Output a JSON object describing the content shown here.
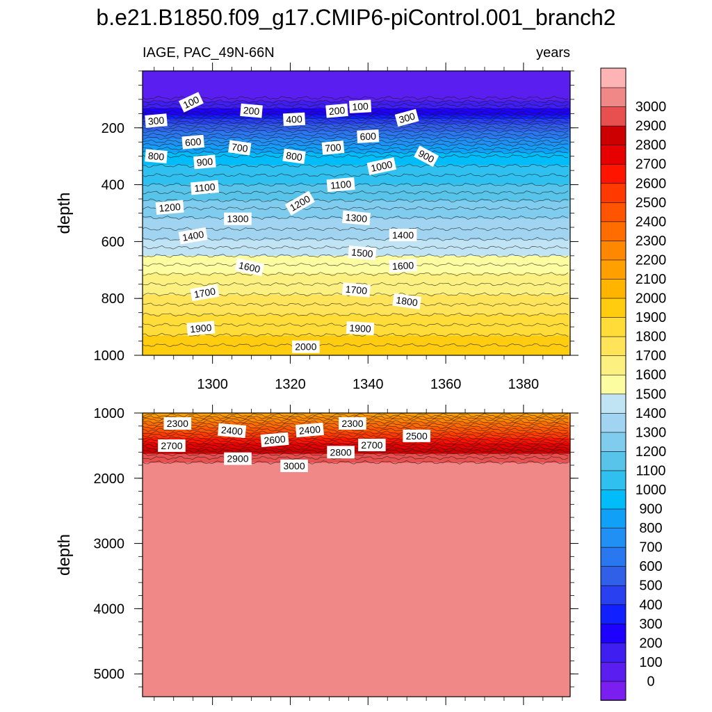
{
  "chart_data": {
    "type": "heatmap",
    "title": "b.e21.B1850.f09_g17.CMIP6-piControl.001_branch2",
    "left_string": "IAGE, PAC_49N-66N",
    "right_string": "years",
    "x": {
      "range": [
        1282,
        1392
      ],
      "ticks": [
        1300,
        1320,
        1340,
        1360,
        1380
      ],
      "tick_labels": [
        "1300",
        "1320",
        "1340",
        "1360",
        "1380"
      ]
    },
    "panels": [
      {
        "name": "upper",
        "ylabel": "depth",
        "y_range": [
          0,
          1000
        ],
        "y_ticks": [
          200,
          400,
          600,
          800,
          1000
        ],
        "y_tick_labels": [
          "200",
          "400",
          "600",
          "800",
          "1000"
        ],
        "age_profile": [
          [
            0,
            0
          ],
          [
            50,
            0
          ],
          [
            90,
            30
          ],
          [
            120,
            150
          ],
          [
            145,
            250
          ],
          [
            170,
            400
          ],
          [
            200,
            550
          ],
          [
            260,
            800
          ],
          [
            300,
            950
          ],
          [
            400,
            1100
          ],
          [
            500,
            1280
          ],
          [
            580,
            1380
          ],
          [
            650,
            1500
          ],
          [
            700,
            1580
          ],
          [
            800,
            1720
          ],
          [
            900,
            1860
          ],
          [
            1000,
            2000
          ]
        ],
        "contour_labels": [
          {
            "text": "300",
            "x": 1285.5,
            "y": 175,
            "rot": -5
          },
          {
            "text": "100",
            "x": 1294.5,
            "y": 110,
            "rot": -25
          },
          {
            "text": "600",
            "x": 1295,
            "y": 250,
            "rot": -5
          },
          {
            "text": "200",
            "x": 1310,
            "y": 140,
            "rot": 5
          },
          {
            "text": "400",
            "x": 1321,
            "y": 170,
            "rot": -3
          },
          {
            "text": "200",
            "x": 1332,
            "y": 140,
            "rot": -5
          },
          {
            "text": "100",
            "x": 1338,
            "y": 125,
            "rot": -3
          },
          {
            "text": "300",
            "x": 1350,
            "y": 165,
            "rot": -15
          },
          {
            "text": "700",
            "x": 1307,
            "y": 270,
            "rot": 8
          },
          {
            "text": "800",
            "x": 1285.5,
            "y": 300,
            "rot": 5
          },
          {
            "text": "900",
            "x": 1298,
            "y": 320,
            "rot": -5
          },
          {
            "text": "800",
            "x": 1321,
            "y": 300,
            "rot": 8
          },
          {
            "text": "700",
            "x": 1331,
            "y": 270,
            "rot": -5
          },
          {
            "text": "600",
            "x": 1340,
            "y": 230,
            "rot": -3
          },
          {
            "text": "900",
            "x": 1355,
            "y": 300,
            "rot": 28
          },
          {
            "text": "1000",
            "x": 1343.5,
            "y": 335,
            "rot": -12
          },
          {
            "text": "1100",
            "x": 1298,
            "y": 410,
            "rot": -5
          },
          {
            "text": "1100",
            "x": 1333,
            "y": 400,
            "rot": -5
          },
          {
            "text": "1200",
            "x": 1289,
            "y": 480,
            "rot": -5
          },
          {
            "text": "1200",
            "x": 1322.5,
            "y": 465,
            "rot": -30
          },
          {
            "text": "1300",
            "x": 1306.5,
            "y": 520,
            "rot": 0
          },
          {
            "text": "1300",
            "x": 1337,
            "y": 517,
            "rot": 5
          },
          {
            "text": "1400",
            "x": 1295,
            "y": 580,
            "rot": -10
          },
          {
            "text": "1400",
            "x": 1349,
            "y": 577,
            "rot": 0
          },
          {
            "text": "1500",
            "x": 1338.5,
            "y": 640,
            "rot": 5
          },
          {
            "text": "1600",
            "x": 1309.5,
            "y": 690,
            "rot": 12
          },
          {
            "text": "1600",
            "x": 1349,
            "y": 685,
            "rot": -3
          },
          {
            "text": "1700",
            "x": 1298,
            "y": 780,
            "rot": -10
          },
          {
            "text": "1700",
            "x": 1337,
            "y": 770,
            "rot": 5
          },
          {
            "text": "1800",
            "x": 1350,
            "y": 810,
            "rot": 8
          },
          {
            "text": "1900",
            "x": 1297,
            "y": 905,
            "rot": -5
          },
          {
            "text": "1900",
            "x": 1338,
            "y": 905,
            "rot": 3
          },
          {
            "text": "2000",
            "x": 1324,
            "y": 970,
            "rot": 0
          }
        ]
      },
      {
        "name": "lower",
        "ylabel": "depth",
        "y_range": [
          1000,
          5350
        ],
        "y_ticks": [
          1000,
          2000,
          3000,
          4000,
          5000
        ],
        "y_tick_labels": [
          "1000",
          "2000",
          "3000",
          "4000",
          "5000"
        ],
        "age_profile": [
          [
            1000,
            2100
          ],
          [
            1100,
            2250
          ],
          [
            1200,
            2380
          ],
          [
            1300,
            2500
          ],
          [
            1400,
            2620
          ],
          [
            1500,
            2750
          ],
          [
            1600,
            2870
          ],
          [
            1700,
            2960
          ],
          [
            1800,
            3030
          ],
          [
            5350,
            3030
          ]
        ],
        "contour_labels": [
          {
            "text": "2300",
            "x": 1291,
            "y": 1160,
            "rot": 0
          },
          {
            "text": "2400",
            "x": 1305,
            "y": 1270,
            "rot": 5
          },
          {
            "text": "2400",
            "x": 1325,
            "y": 1260,
            "rot": -5
          },
          {
            "text": "2300",
            "x": 1336,
            "y": 1160,
            "rot": 0
          },
          {
            "text": "2600",
            "x": 1316,
            "y": 1410,
            "rot": -5
          },
          {
            "text": "2700",
            "x": 1289.5,
            "y": 1500,
            "rot": 0
          },
          {
            "text": "2700",
            "x": 1341,
            "y": 1490,
            "rot": 0
          },
          {
            "text": "2500",
            "x": 1352.5,
            "y": 1350,
            "rot": 0
          },
          {
            "text": "2800",
            "x": 1333,
            "y": 1600,
            "rot": 0
          },
          {
            "text": "2900",
            "x": 1306.5,
            "y": 1700,
            "rot": 0
          },
          {
            "text": "3000",
            "x": 1321,
            "y": 1810,
            "rot": 0
          }
        ]
      }
    ],
    "colorbar": {
      "levels": [
        0,
        100,
        200,
        300,
        400,
        500,
        600,
        700,
        800,
        900,
        1000,
        1100,
        1200,
        1300,
        1400,
        1500,
        1600,
        1700,
        1800,
        1900,
        2000,
        2100,
        2200,
        2300,
        2400,
        2500,
        2600,
        2700,
        2800,
        2900,
        3000
      ],
      "colors": [
        "#7a1ff0",
        "#5a1ef0",
        "#3f1ef2",
        "#1e00ff",
        "#1020ff",
        "#2840f0",
        "#3060e8",
        "#2a78f0",
        "#2090f5",
        "#10a0f8",
        "#00bcf8",
        "#30c0f0",
        "#58c4ea",
        "#80ccee",
        "#a0d4f0",
        "#c0e4f4",
        "#fcfca0",
        "#fcf080",
        "#ffe45a",
        "#ffdc38",
        "#ffcc10",
        "#ffb400",
        "#ffa000",
        "#ff8800",
        "#ff6c00",
        "#ff5400",
        "#ff3a00",
        "#ff1400",
        "#e60000",
        "#cc0000",
        "#e85050",
        "#f08888",
        "#feb4b4"
      ]
    }
  }
}
